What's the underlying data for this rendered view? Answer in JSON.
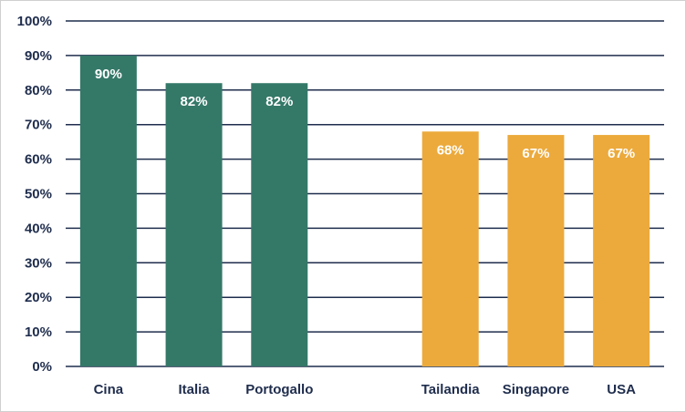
{
  "chart_data": {
    "type": "bar",
    "categories": [
      "Cina",
      "Italia",
      "Portogallo",
      "",
      "Tailandia",
      "Singapore",
      "USA"
    ],
    "values": [
      90,
      82,
      82,
      null,
      68,
      67,
      67
    ],
    "data_labels": [
      "90%",
      "82%",
      "82%",
      "",
      "68%",
      "67%",
      "67%"
    ],
    "bar_colors": [
      "#347868",
      "#347868",
      "#347868",
      "",
      "#ecaa3c",
      "#ecaa3c",
      "#ecaa3c"
    ],
    "yticks": [
      "0%",
      "10%",
      "20%",
      "30%",
      "40%",
      "50%",
      "60%",
      "70%",
      "80%",
      "90%",
      "100%"
    ],
    "ylim": [
      0,
      100
    ],
    "grid": true,
    "title": "",
    "xlabel": "",
    "ylabel": ""
  }
}
